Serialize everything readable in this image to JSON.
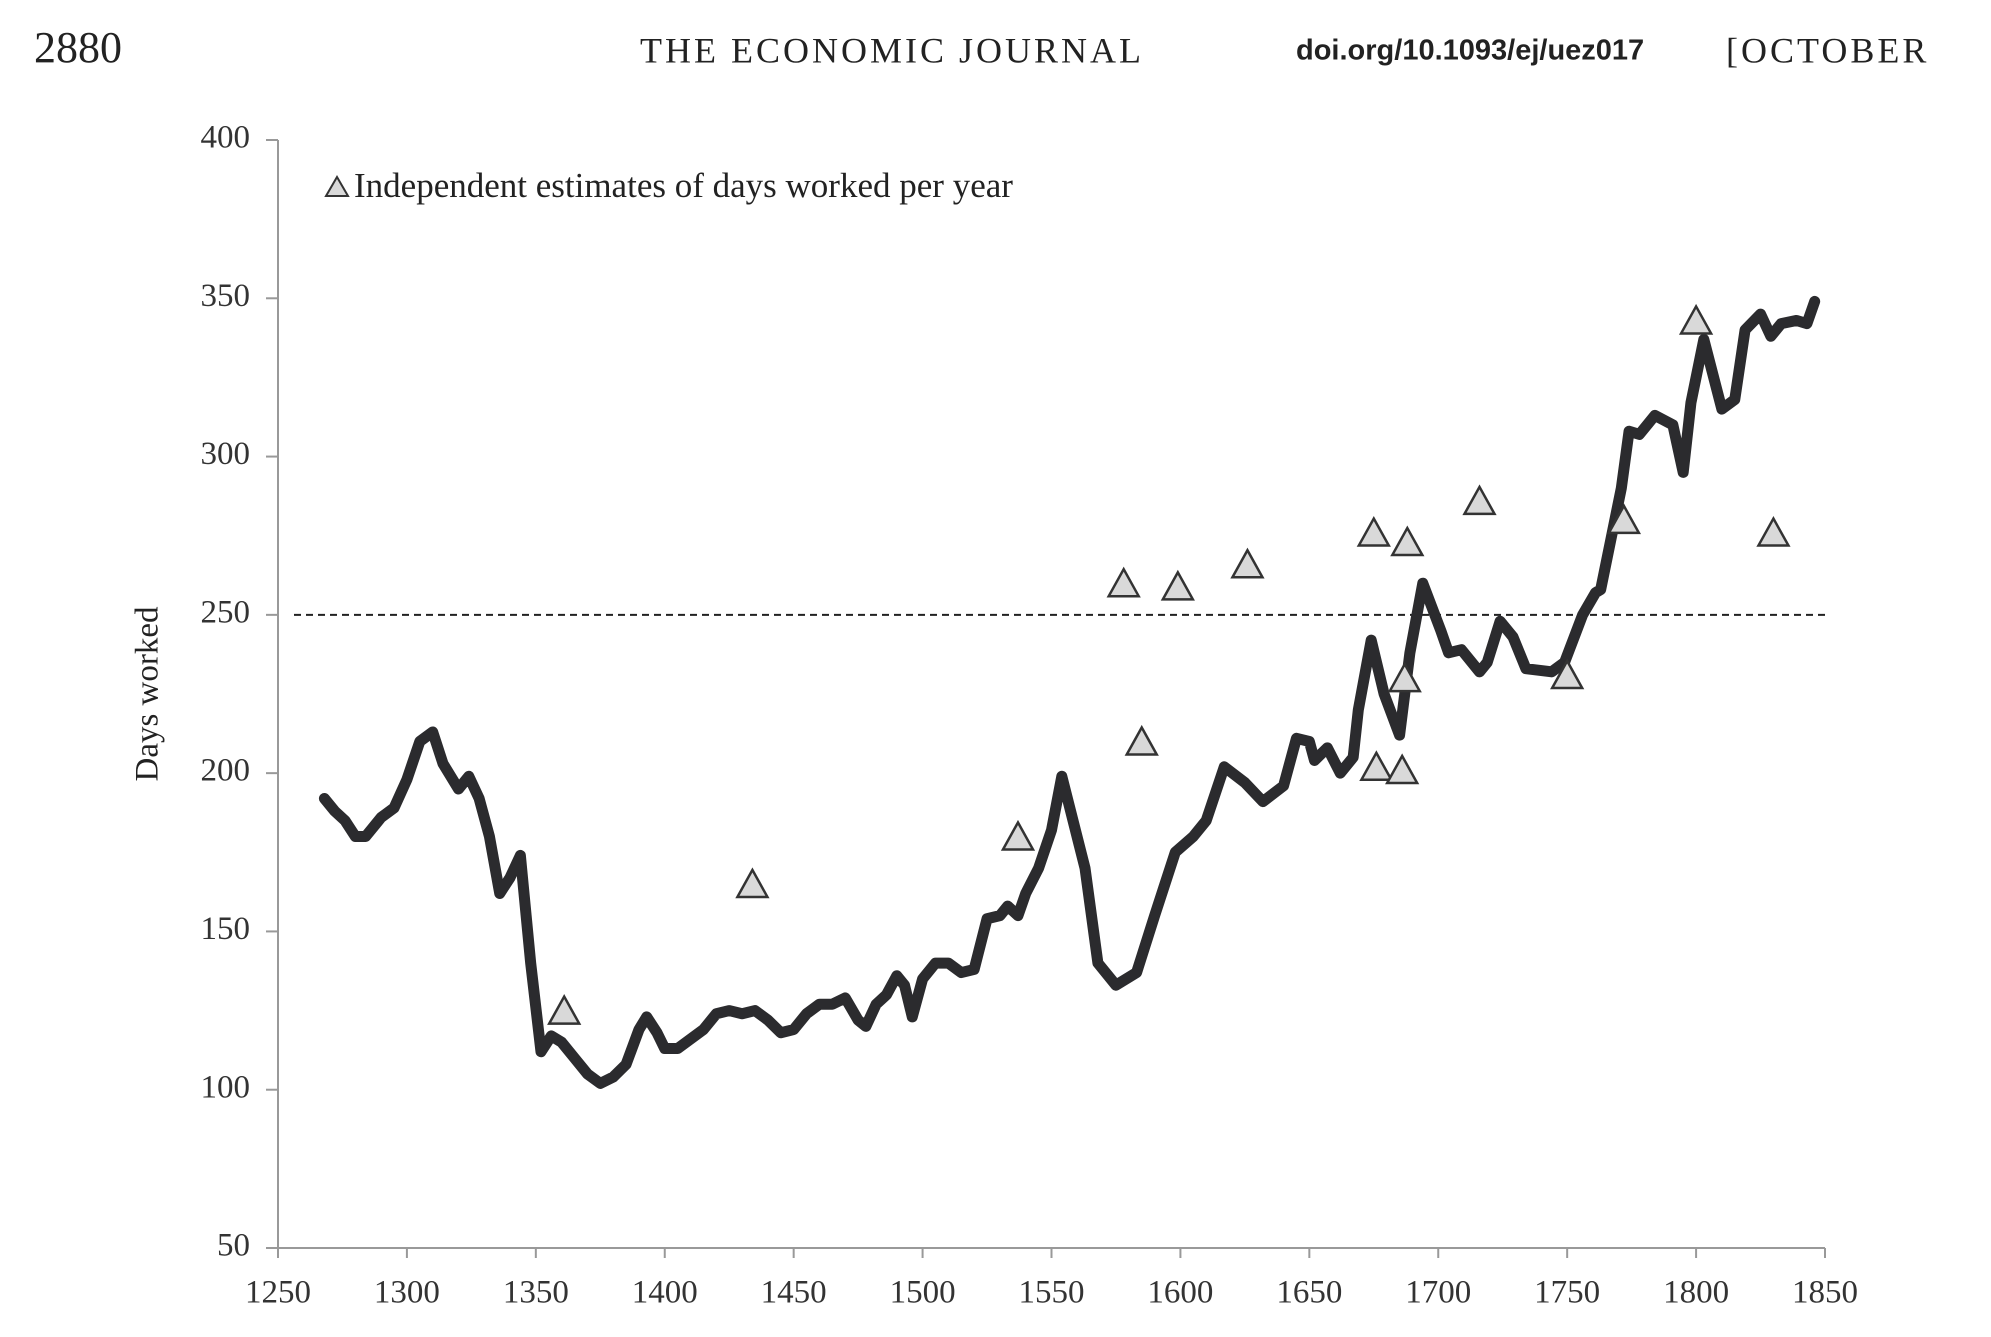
{
  "header": {
    "page_number": "2880",
    "journal": "THE ECONOMIC JOURNAL",
    "doi": "doi.org/10.1093/ej/uez017",
    "month": "[OCTOBER"
  },
  "chart_data": {
    "type": "line",
    "ylabel": "Days worked",
    "xlim": [
      1250,
      1850
    ],
    "xticks": [
      1250,
      1300,
      1350,
      1400,
      1450,
      1500,
      1550,
      1600,
      1650,
      1700,
      1750,
      1800,
      1850
    ],
    "ylim": [
      50,
      400
    ],
    "yticks": [
      50,
      100,
      150,
      200,
      250,
      300,
      350,
      400
    ],
    "reference_line": 250,
    "series": [
      {
        "color": "#2b2b2e",
        "x": [
          1268,
          1272,
          1276,
          1280,
          1284,
          1290,
          1295,
          1300,
          1305,
          1310,
          1314,
          1320,
          1324,
          1328,
          1332,
          1336,
          1340,
          1344,
          1348,
          1352,
          1356,
          1360,
          1365,
          1370,
          1375,
          1380,
          1385,
          1390,
          1393,
          1397,
          1400,
          1405,
          1410,
          1415,
          1420,
          1425,
          1430,
          1435,
          1440,
          1445,
          1450,
          1455,
          1460,
          1465,
          1470,
          1475,
          1478,
          1482,
          1486,
          1490,
          1493,
          1496,
          1500,
          1505,
          1510,
          1515,
          1520,
          1525,
          1530,
          1533,
          1537,
          1540,
          1545,
          1550,
          1554,
          1563,
          1568,
          1575,
          1583,
          1590,
          1598,
          1605,
          1610,
          1617,
          1625,
          1632,
          1640,
          1645,
          1650,
          1652,
          1657,
          1662,
          1667,
          1669,
          1674,
          1679,
          1685,
          1689,
          1694,
          1701,
          1704,
          1709,
          1716,
          1719,
          1724,
          1729,
          1734,
          1744,
          1749,
          1756,
          1761,
          1763,
          1771,
          1774,
          1778,
          1784,
          1791,
          1795,
          1798,
          1803,
          1810,
          1815,
          1819,
          1825,
          1829,
          1833,
          1839,
          1843,
          1846
        ],
        "values": [
          192,
          188,
          185,
          180,
          180,
          186,
          189,
          198,
          210,
          213,
          203,
          195,
          199,
          192,
          180,
          162,
          167,
          174,
          140,
          112,
          117,
          115,
          110,
          105,
          102,
          104,
          108,
          119,
          123,
          118,
          113,
          113,
          116,
          119,
          124,
          125,
          124,
          125,
          122,
          118,
          119,
          124,
          127,
          127,
          129,
          122,
          120,
          127,
          130,
          136,
          133,
          123,
          135,
          140,
          140,
          137,
          138,
          154,
          155,
          158,
          155,
          162,
          170,
          182,
          199,
          170,
          140,
          133,
          137,
          155,
          175,
          180,
          185,
          202,
          197,
          191,
          196,
          211,
          210,
          204,
          208,
          200,
          205,
          220,
          242,
          225,
          212,
          238,
          260,
          245,
          238,
          239,
          232,
          235,
          248,
          243,
          233,
          232,
          235,
          250,
          257,
          258,
          290,
          308,
          307,
          313,
          310,
          295,
          317,
          337,
          315,
          318,
          340,
          345,
          338,
          342,
          343,
          342,
          349
        ]
      },
      {
        "name": "Independent estimates of days worked per year",
        "color": "#d9d9d9",
        "marker": "triangle",
        "x": [
          1361,
          1434,
          1537,
          1578,
          1585,
          1599,
          1626,
          1675,
          1676,
          1686,
          1687,
          1688,
          1716,
          1750,
          1772,
          1800,
          1830
        ],
        "values": [
          125,
          165,
          180,
          260,
          210,
          259,
          266,
          276,
          202,
          201,
          230,
          273,
          286,
          231,
          280,
          343,
          276
        ]
      }
    ]
  }
}
